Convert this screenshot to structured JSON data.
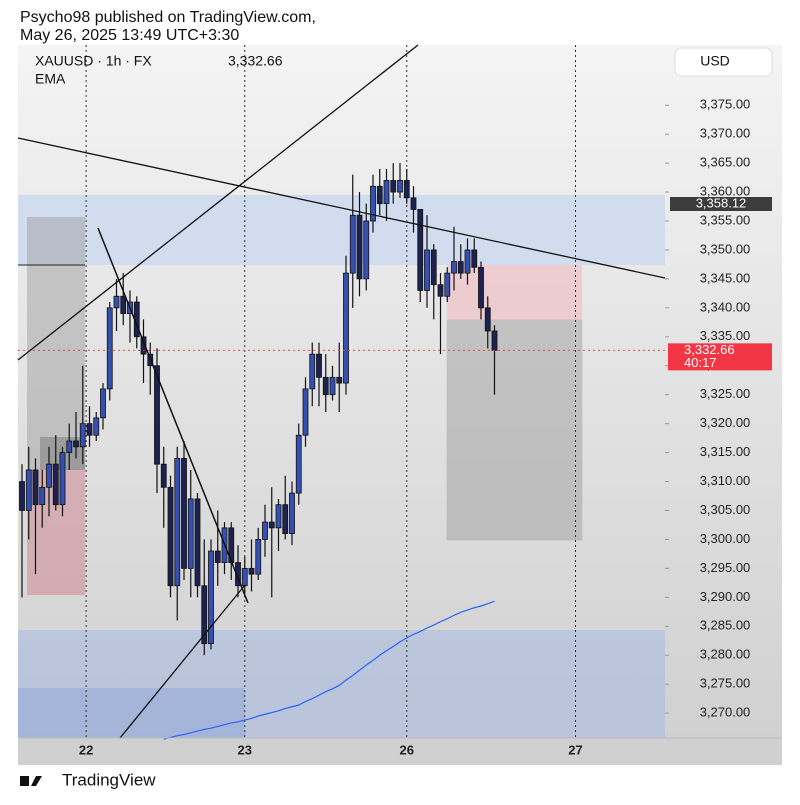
{
  "header": {
    "line1": "Psycho98 published on TradingView.com,",
    "line2": "May 26, 2025 13:49 UTC+3:30"
  },
  "footer": {
    "brand": "TradingView"
  },
  "chart_data": {
    "type": "candlestick",
    "symbol": "XAUUSD · 1h · FX",
    "price": "3,332.66",
    "indicator": "EMA",
    "currency": "USD",
    "level_label": "3,358.12",
    "last_price_label": "3,332.66",
    "countdown": "40:17",
    "up_color": "#3550b0",
    "down_color": "#1c2350",
    "ema_color": "#2962ff",
    "open": [
      3310,
      3305,
      3312,
      3306,
      3309,
      3313,
      3306,
      3315,
      3317,
      3316,
      3320,
      3318,
      3321,
      3326,
      3340,
      3342,
      3339,
      3341,
      3335,
      3332,
      3330,
      3313,
      3309,
      3292,
      3314,
      3295,
      3307,
      3292,
      3282,
      3298,
      3296,
      3302,
      3296,
      3292,
      3295,
      3294,
      3300,
      3303,
      3302,
      3306,
      3301,
      3308,
      3318,
      3326,
      3332,
      3328,
      3325,
      3328,
      3327,
      3346,
      3356,
      3345,
      3355,
      3361,
      3358,
      3362,
      3360,
      3362,
      3359,
      3357,
      3343,
      3350,
      3344,
      3342,
      3346,
      3348,
      3346,
      3350,
      3347,
      3340,
      3336
    ],
    "high": [
      3313,
      3316,
      3314,
      3312,
      3316,
      3318,
      3316,
      3320,
      3322,
      3330,
      3323,
      3322,
      3327,
      3341,
      3345,
      3346,
      3343,
      3342,
      3338,
      3334,
      3333,
      3316,
      3311,
      3316,
      3317,
      3312,
      3308,
      3300,
      3300,
      3305,
      3303,
      3303,
      3299,
      3297,
      3300,
      3302,
      3306,
      3309,
      3307,
      3311,
      3310,
      3320,
      3328,
      3334,
      3334,
      3332,
      3330,
      3334,
      3349,
      3363,
      3360,
      3358,
      3363,
      3364,
      3364,
      3365,
      3365,
      3364,
      3361,
      3357,
      3356,
      3351,
      3346,
      3347,
      3354,
      3351,
      3352,
      3352,
      3348,
      3342,
      3337
    ],
    "low": [
      3290,
      3300,
      3294,
      3302,
      3304,
      3305,
      3304,
      3312,
      3314,
      3313,
      3316,
      3317,
      3319,
      3324,
      3336,
      3337,
      3334,
      3333,
      3327,
      3325,
      3308,
      3302,
      3290,
      3286,
      3293,
      3290,
      3290,
      3280,
      3281,
      3292,
      3294,
      3293,
      3290,
      3290,
      3291,
      3293,
      3297,
      3290,
      3298,
      3300,
      3299,
      3306,
      3316,
      3323,
      3323,
      3322,
      3324,
      3322,
      3325,
      3340,
      3342,
      3343,
      3353,
      3356,
      3355,
      3358,
      3359,
      3358,
      3353,
      3341,
      3340,
      3338,
      3332,
      3341,
      3343,
      3345,
      3344,
      3346,
      3338,
      3333,
      3325
    ],
    "close": [
      3305,
      3312,
      3306,
      3309,
      3313,
      3306,
      3315,
      3317,
      3316,
      3320,
      3318,
      3321,
      3326,
      3340,
      3342,
      3339,
      3341,
      3335,
      3332,
      3330,
      3313,
      3309,
      3292,
      3314,
      3295,
      3307,
      3292,
      3282,
      3298,
      3296,
      3302,
      3296,
      3292,
      3295,
      3294,
      3300,
      3303,
      3302,
      3306,
      3301,
      3308,
      3318,
      3326,
      3332,
      3328,
      3325,
      3328,
      3327,
      3346,
      3356,
      3345,
      3355,
      3361,
      3358,
      3362,
      3360,
      3362,
      3359,
      3357,
      3343,
      3350,
      3344,
      3342,
      3346,
      3348,
      3346,
      3350,
      3347,
      3340,
      3336,
      3332.66
    ],
    "ema": [
      null,
      null,
      null,
      null,
      null,
      null,
      null,
      null,
      null,
      null,
      null,
      null,
      null,
      null,
      null,
      null,
      null,
      null,
      null,
      null,
      null,
      3265.5,
      3265.8,
      3266.1,
      3266.3,
      3266.6,
      3266.9,
      3267.2,
      3267.4,
      3267.7,
      3268.0,
      3268.3,
      3268.5,
      3268.8,
      3269.1,
      3269.5,
      3269.8,
      3270.1,
      3270.4,
      3270.8,
      3271.1,
      3271.4,
      3272.0,
      3272.5,
      3273.1,
      3273.7,
      3274.2,
      3274.8,
      3275.7,
      3276.5,
      3277.4,
      3278.3,
      3279.1,
      3280.0,
      3280.8,
      3281.5,
      3282.3,
      3283.0,
      3283.6,
      3284.1,
      3284.7,
      3285.2,
      3285.8,
      3286.3,
      3286.9,
      3287.4,
      3287.8,
      3288.2,
      3288.5,
      3288.9,
      3289.3
    ],
    "ylim": [
      3265.7,
      3385.4
    ],
    "yticks": [
      {
        "value": 3270,
        "label": "3,270.00"
      },
      {
        "value": 3275,
        "label": "3,275.00"
      },
      {
        "value": 3280,
        "label": "3,280.00"
      },
      {
        "value": 3285,
        "label": "3,285.00"
      },
      {
        "value": 3290,
        "label": "3,290.00"
      },
      {
        "value": 3295,
        "label": "3,295.00"
      },
      {
        "value": 3300,
        "label": "3,300.00"
      },
      {
        "value": 3305,
        "label": "3,305.00"
      },
      {
        "value": 3310,
        "label": "3,310.00"
      },
      {
        "value": 3315,
        "label": "3,315.00"
      },
      {
        "value": 3320,
        "label": "3,320.00"
      },
      {
        "value": 3325,
        "label": "3,325.00"
      },
      {
        "value": 3330,
        "label": "3,330.00"
      },
      {
        "value": 3335,
        "label": "3,335.00"
      },
      {
        "value": 3340,
        "label": "3,340.00"
      },
      {
        "value": 3345,
        "label": "3,345.00"
      },
      {
        "value": 3350,
        "label": "3,350.00"
      },
      {
        "value": 3355,
        "label": "3,355.00"
      },
      {
        "value": 3360,
        "label": "3,360.00"
      },
      {
        "value": 3365,
        "label": "3,365.00"
      },
      {
        "value": 3370,
        "label": "3,370.00"
      },
      {
        "value": 3375,
        "label": "3,375.00"
      }
    ],
    "xticks": [
      {
        "value": 9.5,
        "label": "22"
      },
      {
        "value": 33,
        "label": "23"
      },
      {
        "value": 57,
        "label": "26"
      },
      {
        "value": 82,
        "label": "27"
      }
    ]
  }
}
